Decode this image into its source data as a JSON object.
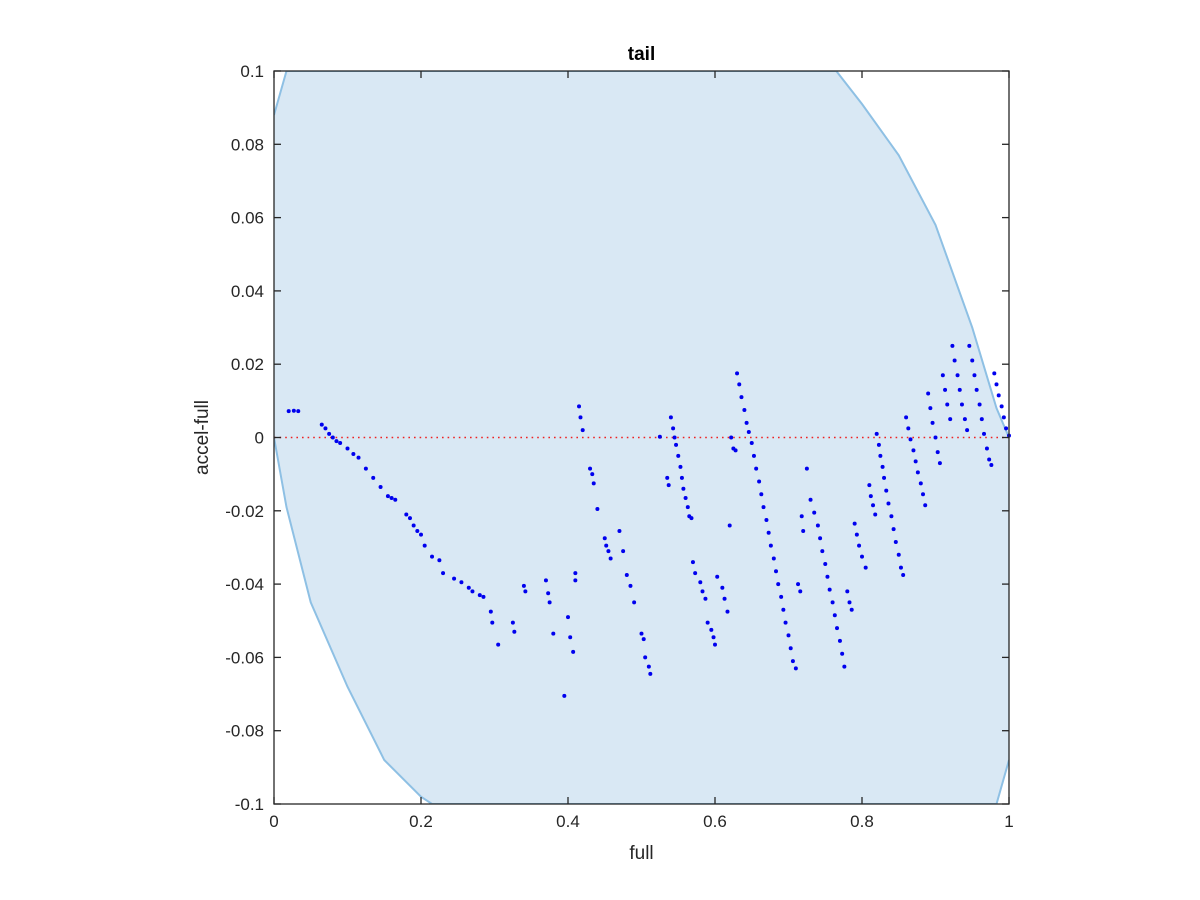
{
  "chart_data": {
    "type": "scatter",
    "title": "tail",
    "xlabel": "full",
    "ylabel": "accel-full",
    "xlim": [
      0,
      1
    ],
    "ylim": [
      -0.1,
      0.1
    ],
    "xticks": [
      "0",
      "0.2",
      "0.4",
      "0.6",
      "0.8",
      "1"
    ],
    "yticks": [
      "-0.1",
      "-0.08",
      "-0.06",
      "-0.04",
      "-0.02",
      "0",
      "0.02",
      "0.04",
      "0.06",
      "0.08",
      "0.1"
    ],
    "grid": false,
    "legend": "none",
    "colors": {
      "points": "#0000ee",
      "zero_line": "#ee2222",
      "region_fill": "#d9e8f4",
      "region_edge": "#8ec0e4",
      "axes": "#262626"
    },
    "zero_line": {
      "y": 0,
      "style": "dotted"
    },
    "shaded_region": {
      "x": [
        0,
        0.017,
        0.05,
        0.1,
        0.15,
        0.2,
        0.215,
        0.3,
        0.4,
        0.5,
        0.6,
        0.7,
        0.765,
        0.8,
        0.85,
        0.9,
        0.95,
        0.983,
        1.0
      ],
      "lower": [
        0.0,
        -0.019,
        -0.045,
        -0.068,
        -0.088,
        -0.098,
        -0.1,
        -0.1,
        -0.1,
        -0.1,
        -0.1,
        -0.1,
        -0.1,
        -0.1,
        -0.1,
        -0.1,
        -0.1,
        -0.1,
        -0.088
      ],
      "upper": [
        0.088,
        0.1,
        0.1,
        0.1,
        0.1,
        0.1,
        0.1,
        0.1,
        0.1,
        0.1,
        0.1,
        0.1,
        0.1,
        0.091,
        0.077,
        0.058,
        0.03,
        0.008,
        0.0
      ]
    },
    "series": [
      {
        "x": [
          0.02,
          0.027,
          0.033
        ],
        "y": [
          0.0072,
          0.0073,
          0.0072
        ]
      },
      {
        "x": [
          0.065,
          0.07,
          0.075,
          0.08,
          0.085,
          0.09,
          0.1,
          0.108,
          0.115,
          0.125,
          0.135,
          0.145,
          0.155,
          0.16,
          0.165,
          0.18,
          0.185,
          0.19,
          0.195,
          0.2,
          0.205,
          0.215,
          0.225,
          0.23,
          0.245,
          0.255,
          0.265,
          0.27,
          0.28,
          0.285
        ],
        "y": [
          0.0035,
          0.0025,
          0.001,
          0.0,
          -0.001,
          -0.0015,
          -0.003,
          -0.0045,
          -0.0055,
          -0.0085,
          -0.011,
          -0.0135,
          -0.016,
          -0.0165,
          -0.017,
          -0.021,
          -0.022,
          -0.024,
          -0.0255,
          -0.0265,
          -0.0295,
          -0.0325,
          -0.0335,
          -0.037,
          -0.0385,
          -0.0395,
          -0.041,
          -0.042,
          -0.043,
          -0.0435
        ]
      },
      {
        "x": [
          0.295,
          0.297,
          0.305,
          0.325,
          0.327,
          0.34,
          0.342,
          0.37,
          0.373,
          0.375,
          0.38,
          0.395,
          0.4,
          0.403,
          0.407,
          0.41,
          0.41
        ],
        "y": [
          -0.0475,
          -0.0505,
          -0.0565,
          -0.0505,
          -0.053,
          -0.0405,
          -0.042,
          -0.039,
          -0.0425,
          -0.045,
          -0.0535,
          -0.0705,
          -0.049,
          -0.0545,
          -0.0585,
          -0.037,
          -0.039
        ]
      },
      {
        "x": [
          0.415,
          0.417,
          0.42,
          0.43,
          0.433,
          0.435,
          0.44,
          0.45,
          0.452,
          0.455,
          0.458,
          0.47,
          0.475,
          0.48,
          0.485,
          0.49,
          0.5,
          0.503,
          0.505,
          0.51,
          0.512
        ],
        "y": [
          0.0085,
          0.0055,
          0.002,
          -0.0085,
          -0.01,
          -0.0125,
          -0.0195,
          -0.0275,
          -0.0295,
          -0.031,
          -0.033,
          -0.0255,
          -0.031,
          -0.0375,
          -0.0405,
          -0.045,
          -0.0535,
          -0.055,
          -0.06,
          -0.0625,
          -0.0645
        ]
      },
      {
        "x": [
          0.525,
          0.535,
          0.537,
          0.54,
          0.543,
          0.545,
          0.547,
          0.55,
          0.553,
          0.555,
          0.557,
          0.56,
          0.563,
          0.565,
          0.568,
          0.57,
          0.573,
          0.58,
          0.583,
          0.587,
          0.59,
          0.595,
          0.598,
          0.6,
          0.603,
          0.61,
          0.613,
          0.617
        ],
        "y": [
          0.0002,
          -0.011,
          -0.013,
          0.0055,
          0.0025,
          0.0,
          -0.002,
          -0.005,
          -0.008,
          -0.011,
          -0.014,
          -0.0165,
          -0.019,
          -0.0215,
          -0.022,
          -0.034,
          -0.037,
          -0.0395,
          -0.042,
          -0.044,
          -0.0505,
          -0.0525,
          -0.0545,
          -0.0565,
          -0.038,
          -0.041,
          -0.044,
          -0.0475
        ]
      },
      {
        "x": [
          0.62,
          0.622,
          0.625,
          0.628,
          0.63,
          0.633,
          0.636,
          0.64,
          0.643,
          0.646,
          0.65,
          0.653,
          0.656,
          0.66,
          0.663,
          0.666,
          0.67,
          0.673,
          0.676,
          0.68,
          0.683,
          0.686,
          0.69,
          0.693,
          0.696,
          0.7,
          0.703,
          0.706,
          0.71,
          0.713,
          0.716
        ],
        "y": [
          -0.024,
          0.0,
          -0.003,
          -0.0035,
          0.0175,
          0.0145,
          0.011,
          0.0075,
          0.004,
          0.0015,
          -0.0015,
          -0.005,
          -0.0085,
          -0.012,
          -0.0155,
          -0.019,
          -0.0225,
          -0.026,
          -0.0295,
          -0.033,
          -0.0365,
          -0.04,
          -0.0435,
          -0.047,
          -0.0505,
          -0.054,
          -0.0575,
          -0.061,
          -0.063,
          -0.04,
          -0.042
        ]
      },
      {
        "x": [
          0.718,
          0.72,
          0.725,
          0.73,
          0.735,
          0.74,
          0.743,
          0.746,
          0.75,
          0.753,
          0.756,
          0.76,
          0.763,
          0.766,
          0.77,
          0.773,
          0.776,
          0.78,
          0.783,
          0.786,
          0.79,
          0.793,
          0.796,
          0.8,
          0.805,
          0.81
        ],
        "y": [
          -0.0215,
          -0.0255,
          -0.0085,
          -0.017,
          -0.0205,
          -0.024,
          -0.0275,
          -0.031,
          -0.0345,
          -0.038,
          -0.0415,
          -0.045,
          -0.0485,
          -0.052,
          -0.0555,
          -0.059,
          -0.0625,
          -0.042,
          -0.045,
          -0.047,
          -0.0235,
          -0.0265,
          -0.0295,
          -0.0325,
          -0.0355,
          -0.013
        ]
      },
      {
        "x": [
          0.812,
          0.815,
          0.818,
          0.82,
          0.823,
          0.825,
          0.828,
          0.83,
          0.833,
          0.836,
          0.84,
          0.843,
          0.846,
          0.85,
          0.853,
          0.856,
          0.86,
          0.863,
          0.866,
          0.87,
          0.873,
          0.876,
          0.88,
          0.883,
          0.886
        ],
        "y": [
          -0.016,
          -0.0185,
          -0.021,
          0.001,
          -0.002,
          -0.005,
          -0.008,
          -0.011,
          -0.0145,
          -0.018,
          -0.0215,
          -0.025,
          -0.0285,
          -0.032,
          -0.0355,
          -0.0375,
          0.0055,
          0.0025,
          -0.0005,
          -0.0035,
          -0.0065,
          -0.0095,
          -0.0125,
          -0.0155,
          -0.0185
        ]
      },
      {
        "x": [
          0.89,
          0.893,
          0.896,
          0.9,
          0.903,
          0.906,
          0.91,
          0.913,
          0.916,
          0.92,
          0.923,
          0.926,
          0.93,
          0.933,
          0.936,
          0.94,
          0.943,
          0.946,
          0.95,
          0.953,
          0.956,
          0.96,
          0.963,
          0.966,
          0.97,
          0.973,
          0.976,
          0.98,
          0.983,
          0.986,
          0.99,
          0.993,
          0.996,
          1.0
        ],
        "y": [
          0.012,
          0.008,
          0.004,
          0.0,
          -0.004,
          -0.007,
          0.017,
          0.013,
          0.009,
          0.005,
          0.025,
          0.021,
          0.017,
          0.013,
          0.009,
          0.005,
          0.002,
          0.025,
          0.021,
          0.017,
          0.013,
          0.009,
          0.005,
          0.001,
          -0.003,
          -0.006,
          -0.0075,
          0.0175,
          0.0145,
          0.0115,
          0.0085,
          0.0055,
          0.0025,
          0.0005
        ]
      }
    ]
  }
}
